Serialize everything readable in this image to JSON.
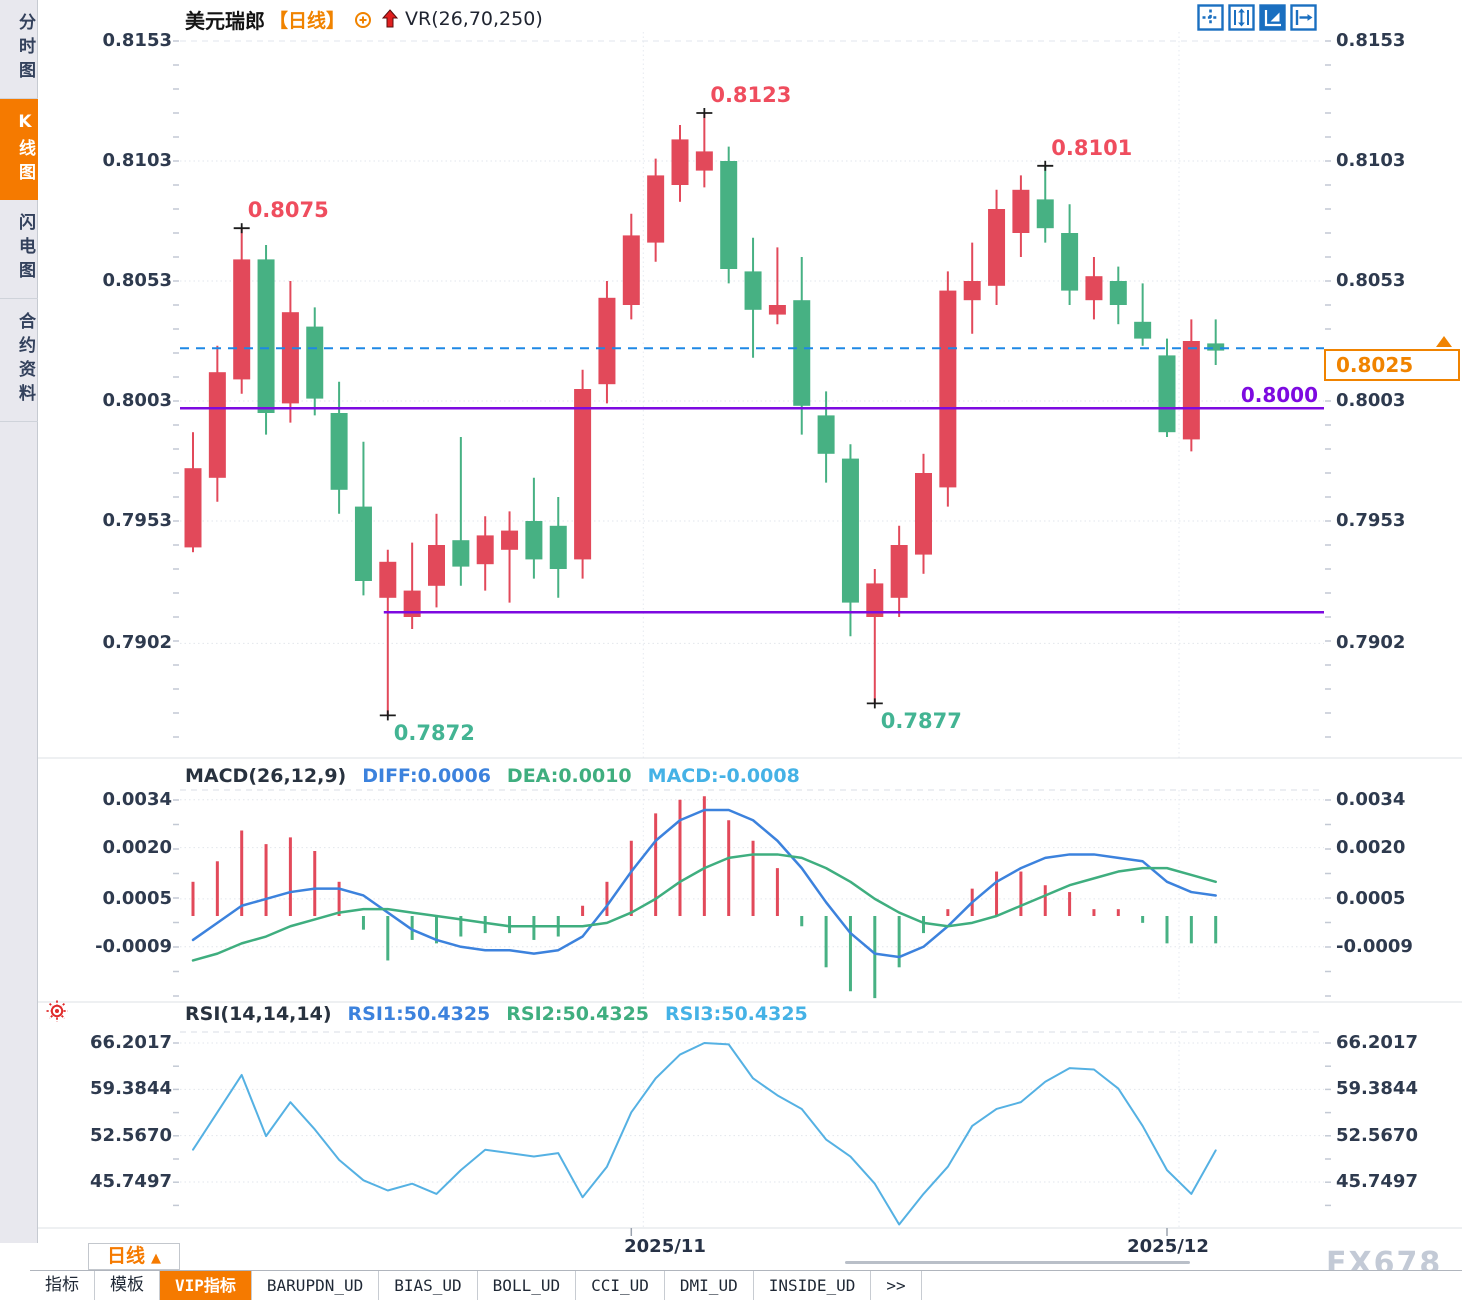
{
  "window": {
    "symbol": "美元瑞郎",
    "period_tag": "【日线】",
    "overlay_indicator": "VR(26,70,250)"
  },
  "sidebar": {
    "items": [
      {
        "label": "分时图",
        "active": false
      },
      {
        "label": "K线图",
        "active": true
      },
      {
        "label": "闪电图",
        "active": false
      },
      {
        "label": "合约资料",
        "active": false
      }
    ]
  },
  "toolbar": {
    "icons": [
      "crosshair-tool",
      "y-axis-zoom",
      "auto-scale-active",
      "pan-right"
    ]
  },
  "colors": {
    "up": "#e2495a",
    "down": "#47b183",
    "purple_line": "#7d0ae0",
    "dashed_line": "#1e88e5",
    "accent_orange": "#f08300",
    "diff_line": "#3c82dd",
    "dea_line": "#3fae7f",
    "cyan_value": "#45b2e6",
    "rsi_line": "#55b1e3",
    "marker_high": "#ef4d5e",
    "marker_low": "#43b493",
    "axis_text": "#2e3a4e"
  },
  "price_tag": {
    "value": "0.8025"
  },
  "level_label": {
    "value": "0.8000"
  },
  "bottom_bar": {
    "period": "日线",
    "period_arrow": "▲",
    "tabs": [
      {
        "label": "指标",
        "active": false
      },
      {
        "label": "模板",
        "active": false
      },
      {
        "label": "VIP指标",
        "active": true
      },
      {
        "label": "BARUPDN_UD",
        "active": false
      },
      {
        "label": "BIAS_UD",
        "active": false
      },
      {
        "label": "BOLL_UD",
        "active": false
      },
      {
        "label": "CCI_UD",
        "active": false
      },
      {
        "label": "DMI_UD",
        "active": false
      },
      {
        "label": "INSIDE_UD",
        "active": false
      },
      {
        "label": ">>",
        "active": false
      }
    ]
  },
  "watermark": "FX678",
  "chart_data": [
    {
      "type": "candlestick",
      "panel": "main",
      "symbol": "美元瑞郎",
      "period": "日线",
      "y_ticks": [
        "0.8153",
        "0.8103",
        "0.8053",
        "0.8003",
        "0.7953",
        "0.7902"
      ],
      "ylim": [
        0.7854,
        0.8158
      ],
      "grid": true,
      "x_ticks": [
        {
          "label": "2025/11",
          "candle": 19
        },
        {
          "label": "2025/12",
          "candle": 41
        }
      ],
      "candles_format": [
        "open",
        "high",
        "low",
        "close"
      ],
      "candles": [
        [
          0.7942,
          0.799,
          0.794,
          0.7975
        ],
        [
          0.7971,
          0.8026,
          0.7961,
          0.8015
        ],
        [
          0.8012,
          0.8075,
          0.8006,
          0.8062
        ],
        [
          0.8062,
          0.8068,
          0.7989,
          0.7998
        ],
        [
          0.8002,
          0.8053,
          0.7994,
          0.804
        ],
        [
          0.8034,
          0.8042,
          0.7997,
          0.8004
        ],
        [
          0.7998,
          0.8011,
          0.7956,
          0.7966
        ],
        [
          0.7959,
          0.7986,
          0.7922,
          0.7928
        ],
        [
          0.7921,
          0.7941,
          0.7872,
          0.7936
        ],
        [
          0.7913,
          0.7944,
          0.7908,
          0.7924
        ],
        [
          0.7926,
          0.7956,
          0.7917,
          0.7943
        ],
        [
          0.7945,
          0.7988,
          0.7926,
          0.7934
        ],
        [
          0.7935,
          0.7955,
          0.7924,
          0.7947
        ],
        [
          0.7941,
          0.7957,
          0.7919,
          0.7949
        ],
        [
          0.7953,
          0.7971,
          0.7929,
          0.7937
        ],
        [
          0.7951,
          0.7963,
          0.7921,
          0.7933
        ],
        [
          0.7937,
          0.8016,
          0.7929,
          0.8008
        ],
        [
          0.801,
          0.8053,
          0.8002,
          0.8046
        ],
        [
          0.8043,
          0.8081,
          0.8037,
          0.8072
        ],
        [
          0.8069,
          0.8104,
          0.8061,
          0.8097
        ],
        [
          0.8093,
          0.8118,
          0.8086,
          0.8112
        ],
        [
          0.8099,
          0.8123,
          0.8092,
          0.8107
        ],
        [
          0.8103,
          0.8109,
          0.8052,
          0.8058
        ],
        [
          0.8057,
          0.8071,
          0.8021,
          0.8041
        ],
        [
          0.8039,
          0.8067,
          0.8035,
          0.8043
        ],
        [
          0.8045,
          0.8063,
          0.7989,
          0.8001
        ],
        [
          0.7997,
          0.8007,
          0.7969,
          0.7981
        ],
        [
          0.7979,
          0.7985,
          0.7905,
          0.7919
        ],
        [
          0.7913,
          0.7933,
          0.7877,
          0.7927
        ],
        [
          0.7921,
          0.7951,
          0.7913,
          0.7943
        ],
        [
          0.7939,
          0.7981,
          0.7931,
          0.7973
        ],
        [
          0.7967,
          0.8057,
          0.7959,
          0.8049
        ],
        [
          0.8045,
          0.8069,
          0.8031,
          0.8053
        ],
        [
          0.8051,
          0.8091,
          0.8043,
          0.8083
        ],
        [
          0.8073,
          0.8097,
          0.8063,
          0.8091
        ],
        [
          0.8087,
          0.8101,
          0.8069,
          0.8075
        ],
        [
          0.8073,
          0.8085,
          0.8043,
          0.8049
        ],
        [
          0.8045,
          0.8063,
          0.8037,
          0.8055
        ],
        [
          0.8053,
          0.8059,
          0.8035,
          0.8043
        ],
        [
          0.8036,
          0.8052,
          0.8026,
          0.8029
        ],
        [
          0.8022,
          0.8029,
          0.7988,
          0.799
        ],
        [
          0.7987,
          0.8037,
          0.7982,
          0.8028
        ],
        [
          0.8027,
          0.8037,
          0.8018,
          0.8024
        ]
      ],
      "annotations": [
        {
          "candle": 3,
          "price": 0.8075,
          "label": "0.8075",
          "type": "high"
        },
        {
          "candle": 22,
          "price": 0.8123,
          "label": "0.8123",
          "type": "high"
        },
        {
          "candle": 36,
          "price": 0.8101,
          "label": "0.8101",
          "type": "high"
        },
        {
          "candle": 9,
          "price": 0.7872,
          "label": "0.7872",
          "type": "low"
        },
        {
          "candle": 29,
          "price": 0.7877,
          "label": "0.7877",
          "type": "low"
        }
      ],
      "lines": [
        {
          "price": 0.8025,
          "style": "dashed",
          "color_key": "dashed_line",
          "tag": "0.8025"
        },
        {
          "price": 0.8,
          "style": "solid",
          "color_key": "purple_line",
          "label": "0.8000"
        },
        {
          "price": 0.7915,
          "style": "solid",
          "color_key": "purple_line",
          "from_candle": 9
        }
      ]
    },
    {
      "type": "macd",
      "panel": "sub1",
      "title": "MACD(26,12,9)",
      "legend": [
        {
          "text": "DIFF:0.0006",
          "color_key": "diff_line"
        },
        {
          "text": "DEA:0.0010",
          "color_key": "dea_line"
        },
        {
          "text": "MACD:-0.0008",
          "color_key": "cyan_value"
        }
      ],
      "y_ticks": [
        "0.0034",
        "0.0020",
        "0.0005",
        "-0.0009"
      ],
      "hist": [
        0.001,
        0.0016,
        0.0025,
        0.0021,
        0.0023,
        0.0019,
        0.001,
        -0.0004,
        -0.0013,
        -0.0007,
        -0.0008,
        -0.0006,
        -0.0005,
        -0.0005,
        -0.0007,
        -0.0006,
        0.0003,
        0.001,
        0.0022,
        0.003,
        0.0034,
        0.0035,
        0.0028,
        0.0022,
        0.0014,
        -0.0003,
        -0.0015,
        -0.0022,
        -0.0024,
        -0.0015,
        -0.0005,
        0.0002,
        0.0008,
        0.0013,
        0.0013,
        0.0009,
        0.0007,
        0.0002,
        0.0002,
        -0.0002,
        -0.0008,
        -0.0008,
        -0.0008
      ],
      "diff": [
        -0.0007,
        -0.0002,
        0.0003,
        0.0005,
        0.0007,
        0.0008,
        0.0008,
        0.0006,
        0.0001,
        -0.0004,
        -0.0007,
        -0.0009,
        -0.001,
        -0.001,
        -0.0011,
        -0.001,
        -0.0006,
        0.0003,
        0.0013,
        0.0022,
        0.0028,
        0.0031,
        0.0031,
        0.0028,
        0.0022,
        0.0014,
        0.0004,
        -0.0005,
        -0.0011,
        -0.0012,
        -0.0009,
        -0.0003,
        0.0004,
        0.001,
        0.0014,
        0.0017,
        0.0018,
        0.0018,
        0.0017,
        0.0016,
        0.001,
        0.0007,
        0.0006
      ],
      "dea": [
        -0.0013,
        -0.0011,
        -0.0008,
        -0.0006,
        -0.0003,
        -0.0001,
        0.0001,
        0.0002,
        0.0002,
        0.0001,
        0.0,
        -0.0001,
        -0.0002,
        -0.0003,
        -0.0003,
        -0.0003,
        -0.0003,
        -0.0002,
        0.0001,
        0.0005,
        0.001,
        0.0014,
        0.0017,
        0.0018,
        0.0018,
        0.0017,
        0.0014,
        0.001,
        0.0005,
        0.0001,
        -0.0002,
        -0.0003,
        -0.0002,
        0.0,
        0.0003,
        0.0006,
        0.0009,
        0.0011,
        0.0013,
        0.0014,
        0.0014,
        0.0012,
        0.001
      ]
    },
    {
      "type": "line",
      "panel": "sub2",
      "title": "RSI(14,14,14)",
      "legend": [
        {
          "text": "RSI1:50.4325",
          "color_key": "diff_line"
        },
        {
          "text": "RSI2:50.4325",
          "color_key": "dea_line"
        },
        {
          "text": "RSI3:50.4325",
          "color_key": "cyan_value"
        }
      ],
      "y_ticks": [
        "66.2017",
        "59.3844",
        "52.5670",
        "45.7497"
      ],
      "values": [
        50.5,
        56.0,
        61.5,
        52.5,
        57.5,
        53.5,
        49.0,
        46.0,
        44.5,
        45.5,
        44.0,
        47.5,
        50.5,
        50.0,
        49.5,
        50.0,
        43.5,
        48.0,
        56.0,
        61.0,
        64.5,
        66.2,
        66.0,
        61.0,
        58.5,
        56.5,
        52.0,
        49.5,
        45.5,
        39.5,
        44.0,
        48.0,
        54.0,
        56.5,
        57.5,
        60.5,
        62.5,
        62.3,
        59.5,
        54.0,
        47.5,
        44.0,
        50.4
      ]
    }
  ]
}
